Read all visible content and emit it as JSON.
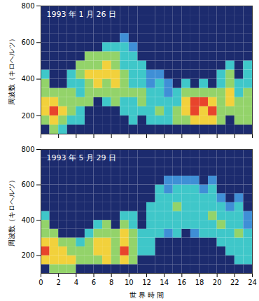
{
  "chart_data": [
    {
      "type": "heatmap",
      "title": "1993 年 1 月 26 日",
      "ylabel": "周波数（キロヘルツ）",
      "xlim": [
        0,
        24
      ],
      "xticks": [
        0,
        2,
        4,
        6,
        8,
        10,
        12,
        14,
        16,
        18,
        20,
        22,
        24
      ],
      "ylim": [
        100,
        800
      ],
      "yticks": [
        200,
        400,
        600,
        800
      ],
      "tick_labels": "y",
      "x_bins": [
        0,
        1,
        2,
        3,
        4,
        5,
        6,
        7,
        8,
        9,
        10,
        11,
        12,
        13,
        14,
        15,
        16,
        17,
        18,
        19,
        20,
        21,
        22,
        23,
        24
      ],
      "y_bins": [
        100,
        150,
        200,
        250,
        300,
        350,
        400,
        450,
        500,
        550,
        600,
        650,
        700,
        750,
        800
      ],
      "levels": [
        0,
        1,
        2,
        3,
        4,
        5
      ],
      "colors": [
        "#1c2b6e",
        "#3f8fd6",
        "#3fc7c9",
        "#93d36a",
        "#f2d13c",
        "#e8442c"
      ],
      "cells": [
        [
          0,
          3,
          4,
          4,
          3,
          3,
          2,
          0,
          0,
          0,
          0,
          0,
          0,
          0
        ],
        [
          3,
          4,
          5,
          4,
          3,
          0,
          0,
          0,
          0,
          0,
          0,
          0,
          0,
          0
        ],
        [
          2,
          3,
          4,
          3,
          3,
          0,
          0,
          0,
          0,
          0,
          0,
          0,
          0,
          0
        ],
        [
          0,
          2,
          3,
          3,
          3,
          2,
          2,
          0,
          0,
          0,
          0,
          0,
          0,
          0
        ],
        [
          0,
          2,
          2,
          3,
          2,
          2,
          3,
          3,
          0,
          0,
          0,
          0,
          0,
          0
        ],
        [
          0,
          0,
          0,
          3,
          3,
          3,
          4,
          3,
          3,
          0,
          0,
          0,
          0,
          0
        ],
        [
          0,
          0,
          0,
          0,
          3,
          4,
          4,
          3,
          3,
          0,
          0,
          0,
          0,
          0
        ],
        [
          0,
          0,
          0,
          2,
          3,
          3,
          4,
          4,
          3,
          2,
          0,
          0,
          0,
          0
        ],
        [
          0,
          0,
          0,
          3,
          3,
          4,
          4,
          3,
          3,
          2,
          0,
          0,
          0,
          0
        ],
        [
          0,
          0,
          2,
          2,
          3,
          3,
          3,
          2,
          2,
          2,
          1,
          0,
          0,
          0
        ],
        [
          0,
          2,
          2,
          2,
          3,
          2,
          2,
          2,
          2,
          1,
          0,
          0,
          0,
          0
        ],
        [
          0,
          0,
          2,
          3,
          3,
          2,
          2,
          2,
          0,
          0,
          0,
          0,
          0,
          0
        ],
        [
          0,
          2,
          2,
          2,
          2,
          1,
          1,
          0,
          0,
          0,
          0,
          0,
          0,
          0
        ],
        [
          0,
          2,
          3,
          2,
          2,
          2,
          1,
          0,
          0,
          0,
          0,
          0,
          0,
          0
        ],
        [
          0,
          2,
          2,
          2,
          1,
          1,
          0,
          0,
          0,
          0,
          0,
          0,
          0,
          0
        ],
        [
          0,
          3,
          3,
          2,
          2,
          0,
          0,
          0,
          0,
          0,
          0,
          0,
          0,
          0
        ],
        [
          0,
          3,
          4,
          4,
          3,
          2,
          0,
          0,
          0,
          0,
          0,
          0,
          0,
          0
        ],
        [
          0,
          4,
          5,
          5,
          3,
          0,
          0,
          0,
          0,
          0,
          0,
          0,
          0,
          0
        ],
        [
          0,
          4,
          4,
          5,
          3,
          2,
          0,
          0,
          0,
          0,
          0,
          0,
          0,
          0
        ],
        [
          0,
          4,
          5,
          4,
          3,
          0,
          0,
          0,
          0,
          0,
          0,
          0,
          0,
          0
        ],
        [
          0,
          3,
          3,
          3,
          3,
          2,
          2,
          0,
          0,
          0,
          0,
          0,
          0,
          0
        ],
        [
          0,
          0,
          3,
          4,
          4,
          3,
          3,
          2,
          0,
          0,
          0,
          0,
          0,
          0
        ],
        [
          0,
          3,
          3,
          3,
          2,
          2,
          0,
          0,
          0,
          0,
          0,
          0,
          0,
          0
        ],
        [
          0,
          3,
          3,
          3,
          3,
          2,
          2,
          2,
          0,
          0,
          0,
          0,
          0,
          0
        ]
      ]
    },
    {
      "type": "heatmap",
      "title": "1993 年 5 月 29 日",
      "ylabel": "周波数（キロヘルツ）",
      "xlabel": "世 界 時 間",
      "xlim": [
        0,
        24
      ],
      "xticks": [
        0,
        2,
        4,
        6,
        8,
        10,
        12,
        14,
        16,
        18,
        20,
        22,
        24
      ],
      "ylim": [
        100,
        800
      ],
      "yticks": [
        200,
        400,
        600,
        800
      ],
      "x_bins": [
        0,
        1,
        2,
        3,
        4,
        5,
        6,
        7,
        8,
        9,
        10,
        11,
        12,
        13,
        14,
        15,
        16,
        17,
        18,
        19,
        20,
        21,
        22,
        23,
        24
      ],
      "y_bins": [
        100,
        150,
        200,
        250,
        300,
        350,
        400,
        450,
        500,
        550,
        600,
        650,
        700,
        750,
        800
      ],
      "levels": [
        0,
        1,
        2,
        3,
        4,
        5
      ],
      "colors": [
        "#1c2b6e",
        "#3f8fd6",
        "#3fc7c9",
        "#93d36a",
        "#f2d13c",
        "#e8442c"
      ],
      "cells": [
        [
          0,
          4,
          5,
          4,
          3,
          3,
          2,
          0,
          0,
          0,
          0,
          0,
          0,
          0
        ],
        [
          3,
          4,
          4,
          4,
          3,
          0,
          0,
          0,
          0,
          0,
          0,
          0,
          0,
          0
        ],
        [
          3,
          4,
          4,
          3,
          0,
          0,
          0,
          0,
          0,
          0,
          0,
          0,
          0,
          0
        ],
        [
          3,
          4,
          3,
          3,
          0,
          0,
          0,
          0,
          0,
          0,
          0,
          0,
          0,
          0
        ],
        [
          0,
          3,
          3,
          2,
          0,
          0,
          0,
          0,
          0,
          0,
          0,
          0,
          0,
          0
        ],
        [
          0,
          3,
          3,
          3,
          2,
          0,
          0,
          0,
          0,
          0,
          0,
          0,
          0,
          0
        ],
        [
          0,
          3,
          4,
          4,
          3,
          2,
          0,
          0,
          0,
          0,
          0,
          0,
          0,
          0
        ],
        [
          0,
          4,
          4,
          4,
          3,
          3,
          0,
          0,
          0,
          0,
          0,
          0,
          0,
          0
        ],
        [
          0,
          3,
          3,
          3,
          3,
          0,
          0,
          0,
          0,
          0,
          0,
          0,
          0,
          0
        ],
        [
          0,
          4,
          5,
          4,
          4,
          3,
          2,
          0,
          0,
          0,
          0,
          0,
          0,
          0
        ],
        [
          0,
          3,
          3,
          3,
          3,
          2,
          2,
          0,
          0,
          0,
          0,
          0,
          0,
          0
        ],
        [
          0,
          0,
          2,
          2,
          2,
          0,
          0,
          0,
          0,
          0,
          0,
          0,
          0,
          0
        ],
        [
          0,
          0,
          2,
          2,
          2,
          2,
          2,
          2,
          0,
          0,
          0,
          0,
          0,
          0
        ],
        [
          0,
          0,
          0,
          0,
          2,
          2,
          2,
          2,
          2,
          2,
          0,
          0,
          0,
          0
        ],
        [
          0,
          0,
          0,
          0,
          1,
          2,
          2,
          2,
          2,
          1,
          1,
          0,
          0,
          0
        ],
        [
          0,
          0,
          0,
          0,
          2,
          2,
          2,
          3,
          2,
          2,
          1,
          0,
          0,
          0
        ],
        [
          0,
          0,
          0,
          0,
          0,
          2,
          2,
          2,
          2,
          2,
          1,
          0,
          0,
          0
        ],
        [
          0,
          0,
          0,
          0,
          1,
          2,
          2,
          2,
          2,
          2,
          1,
          0,
          0,
          0
        ],
        [
          0,
          0,
          0,
          0,
          2,
          2,
          2,
          2,
          2,
          1,
          0,
          0,
          0,
          0
        ],
        [
          0,
          0,
          0,
          0,
          2,
          2,
          3,
          2,
          2,
          2,
          1,
          0,
          0,
          0
        ],
        [
          0,
          0,
          0,
          2,
          2,
          3,
          2,
          2,
          1,
          0,
          0,
          0,
          0,
          0
        ],
        [
          0,
          0,
          2,
          2,
          2,
          2,
          2,
          1,
          0,
          0,
          0,
          0,
          0,
          0
        ],
        [
          0,
          2,
          2,
          2,
          3,
          2,
          2,
          2,
          1,
          0,
          0,
          0,
          0,
          0
        ],
        [
          0,
          2,
          2,
          2,
          2,
          1,
          1,
          0,
          0,
          0,
          0,
          0,
          0,
          0
        ]
      ]
    }
  ]
}
